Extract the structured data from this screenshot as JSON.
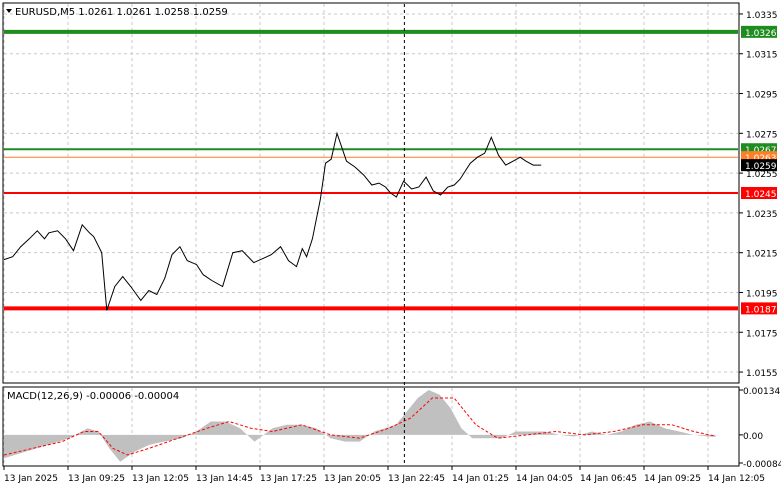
{
  "chart_data": [
    {
      "type": "line",
      "header": "EURUSD,M5  1.0261 1.0261 1.0258 1.0259",
      "y_ticks": [
        1.0335,
        1.0315,
        1.0295,
        1.0275,
        1.0255,
        1.0235,
        1.0215,
        1.0195,
        1.0175,
        1.0155
      ],
      "ylim": [
        1.015,
        1.034
      ],
      "x_ticks": [
        "13 Jan 2025",
        "13 Jan 09:25",
        "13 Jan 12:05",
        "13 Jan 14:45",
        "13 Jan 17:25",
        "13 Jan 20:05",
        "13 Jan 22:45",
        "14 Jan 01:25",
        "14 Jan 04:05",
        "14 Jan 06:45",
        "14 Jan 09:25",
        "14 Jan 12:05"
      ],
      "xlim": [
        0,
        1
      ],
      "x": [
        0.0,
        0.012,
        0.023,
        0.035,
        0.046,
        0.056,
        0.062,
        0.074,
        0.085,
        0.096,
        0.108,
        0.118,
        0.124,
        0.135,
        0.142,
        0.153,
        0.164,
        0.175,
        0.189,
        0.2,
        0.211,
        0.222,
        0.232,
        0.243,
        0.253,
        0.266,
        0.275,
        0.287,
        0.302,
        0.316,
        0.329,
        0.345,
        0.357,
        0.369,
        0.382,
        0.393,
        0.404,
        0.412,
        0.418,
        0.426,
        0.437,
        0.444,
        0.452,
        0.46,
        0.473,
        0.485,
        0.497,
        0.508,
        0.518,
        0.527,
        0.534,
        0.542,
        0.552,
        0.563,
        0.573,
        0.583,
        0.593,
        0.603,
        0.613,
        0.622,
        0.63,
        0.644,
        0.654,
        0.664,
        0.673,
        0.683,
        0.693,
        0.703,
        0.713,
        0.721,
        0.731,
        0.742
      ],
      "series": [
        {
          "values": [
            1.02115,
            1.0213,
            1.0218,
            1.0222,
            1.0226,
            1.0222,
            1.0225,
            1.0226,
            1.0222,
            1.0216,
            1.0229,
            1.0225,
            1.0223,
            1.0215,
            1.0186,
            1.0198,
            1.0203,
            1.0198,
            1.0191,
            1.0196,
            1.0194,
            1.0202,
            1.0214,
            1.0218,
            1.0211,
            1.0209,
            1.0204,
            1.0201,
            1.0198,
            1.0215,
            1.0216,
            1.021,
            1.0212,
            1.0214,
            1.0218,
            1.0211,
            1.0208,
            1.0217,
            1.0213,
            1.0222,
            1.0242,
            1.026,
            1.0262,
            1.0275,
            1.0261,
            1.0258,
            1.0254,
            1.0249,
            1.025,
            1.0248,
            1.0245,
            1.0243,
            1.0251,
            1.0247,
            1.0248,
            1.0253,
            1.0246,
            1.0244,
            1.0248,
            1.0249,
            1.0252,
            1.026,
            1.0263,
            1.0265,
            1.0273,
            1.0264,
            1.0259,
            1.0261,
            1.0263,
            1.0261,
            1.0259,
            1.0259
          ]
        }
      ],
      "levels": [
        {
          "label": "1.0326",
          "value": 1.0326,
          "color": "#1f8c1f"
        },
        {
          "label": "1.0267",
          "value": 1.0267,
          "color": "#1f8c1f"
        },
        {
          "label": "1.0263",
          "value": 1.0263,
          "color": "#ff7f27"
        },
        {
          "label": "1.0259",
          "value": 1.0259,
          "color": "#000000"
        },
        {
          "label": "1.0245",
          "value": 1.0245,
          "color": "#ff0000"
        },
        {
          "label": "1.0187",
          "value": 1.0187,
          "color": "#ff0000"
        }
      ],
      "vline_x": 0.553
    },
    {
      "type": "area",
      "header": "MACD(12,26,9) -0.00006 -0.00004",
      "y_ticks": [
        "0.00134",
        "0.00",
        "-0.00084"
      ],
      "ylim": [
        -0.0009,
        0.0014
      ],
      "histogram": [
        {
          "x": 0.0,
          "v": -0.0007
        },
        {
          "x": 0.03,
          "v": -0.0005
        },
        {
          "x": 0.06,
          "v": -0.0003
        },
        {
          "x": 0.09,
          "v": -0.0001
        },
        {
          "x": 0.115,
          "v": 0.0002
        },
        {
          "x": 0.13,
          "v": 0.0001
        },
        {
          "x": 0.145,
          "v": -0.0004
        },
        {
          "x": 0.16,
          "v": -0.0008
        },
        {
          "x": 0.18,
          "v": -0.0005
        },
        {
          "x": 0.2,
          "v": -0.0003
        },
        {
          "x": 0.22,
          "v": -0.0002
        },
        {
          "x": 0.245,
          "v": -0.0001
        },
        {
          "x": 0.265,
          "v": 0.0001
        },
        {
          "x": 0.285,
          "v": 0.0004
        },
        {
          "x": 0.305,
          "v": 0.0004
        },
        {
          "x": 0.325,
          "v": 0.0002
        },
        {
          "x": 0.345,
          "v": -0.0002
        },
        {
          "x": 0.37,
          "v": 0.0002
        },
        {
          "x": 0.39,
          "v": 0.0003
        },
        {
          "x": 0.41,
          "v": 0.0003
        },
        {
          "x": 0.43,
          "v": 0.0002
        },
        {
          "x": 0.45,
          "v": -0.0001
        },
        {
          "x": 0.47,
          "v": -0.0002
        },
        {
          "x": 0.49,
          "v": -0.0002
        },
        {
          "x": 0.51,
          "v": 0.0001
        },
        {
          "x": 0.525,
          "v": 0.0002
        },
        {
          "x": 0.54,
          "v": 0.0003
        },
        {
          "x": 0.555,
          "v": 0.0007
        },
        {
          "x": 0.57,
          "v": 0.0011
        },
        {
          "x": 0.585,
          "v": 0.00134
        },
        {
          "x": 0.6,
          "v": 0.0012
        },
        {
          "x": 0.615,
          "v": 0.0008
        },
        {
          "x": 0.63,
          "v": 0.0002
        },
        {
          "x": 0.645,
          "v": -0.0001
        },
        {
          "x": 0.665,
          "v": -0.0001
        },
        {
          "x": 0.685,
          "v": -0.0001
        },
        {
          "x": 0.705,
          "v": 0.0001
        },
        {
          "x": 0.725,
          "v": 0.0001
        },
        {
          "x": 0.745,
          "v": 0.0001
        },
        {
          "x": 0.765,
          "v": 0.0
        },
        {
          "x": 0.785,
          "v": -5e-05
        },
        {
          "x": 0.81,
          "v": 0.0001
        },
        {
          "x": 0.83,
          "v": 0.0
        },
        {
          "x": 0.85,
          "v": 0.0001
        },
        {
          "x": 0.87,
          "v": 0.0003
        },
        {
          "x": 0.89,
          "v": 0.0004
        },
        {
          "x": 0.91,
          "v": 0.0002
        },
        {
          "x": 0.93,
          "v": 0.0001
        },
        {
          "x": 0.95,
          "v": 0.0
        },
        {
          "x": 0.97,
          "v": -5e-05
        },
        {
          "x": 0.98,
          "v": -6e-05
        }
      ],
      "signal": [
        {
          "x": 0.0,
          "v": -0.0006
        },
        {
          "x": 0.04,
          "v": -0.0004
        },
        {
          "x": 0.08,
          "v": -0.0002
        },
        {
          "x": 0.11,
          "v": 0.0001
        },
        {
          "x": 0.13,
          "v": 0.0001
        },
        {
          "x": 0.15,
          "v": -0.0004
        },
        {
          "x": 0.17,
          "v": -0.0006
        },
        {
          "x": 0.2,
          "v": -0.0004
        },
        {
          "x": 0.24,
          "v": -0.0001
        },
        {
          "x": 0.28,
          "v": 0.0002
        },
        {
          "x": 0.31,
          "v": 0.0004
        },
        {
          "x": 0.34,
          "v": 0.0002
        },
        {
          "x": 0.37,
          "v": 0.0001
        },
        {
          "x": 0.41,
          "v": 0.0003
        },
        {
          "x": 0.45,
          "v": 0.0
        },
        {
          "x": 0.49,
          "v": -0.0001
        },
        {
          "x": 0.53,
          "v": 0.0002
        },
        {
          "x": 0.56,
          "v": 0.0005
        },
        {
          "x": 0.59,
          "v": 0.0011
        },
        {
          "x": 0.62,
          "v": 0.0011
        },
        {
          "x": 0.65,
          "v": 0.0003
        },
        {
          "x": 0.68,
          "v": -0.0001
        },
        {
          "x": 0.72,
          "v": 0.0
        },
        {
          "x": 0.76,
          "v": 0.0001
        },
        {
          "x": 0.8,
          "v": 0.0
        },
        {
          "x": 0.84,
          "v": 0.0001
        },
        {
          "x": 0.88,
          "v": 0.0003
        },
        {
          "x": 0.92,
          "v": 0.0003
        },
        {
          "x": 0.95,
          "v": 0.0001
        },
        {
          "x": 0.98,
          "v": -4e-05
        }
      ]
    }
  ],
  "colors": {
    "grid": "#c8c8c8",
    "price_line": "#000000",
    "macd_hist": "#c0c0c0",
    "macd_signal": "#ff0000",
    "label_text_light": "#ffffff"
  }
}
